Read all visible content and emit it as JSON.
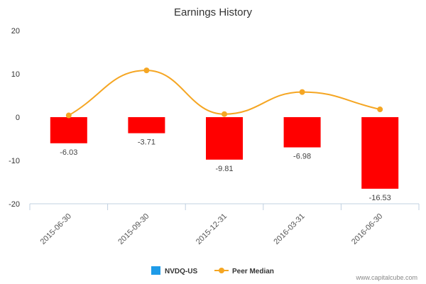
{
  "chart_data": {
    "type": "bar",
    "title": "Earnings History",
    "xlabel": "",
    "ylabel": "",
    "ylim": [
      -20,
      20
    ],
    "yticks": [
      "20",
      "10",
      "0",
      "-10",
      "-20"
    ],
    "ytick_values": [
      20,
      10,
      0,
      -10,
      -20
    ],
    "categories": [
      "2015-06-30",
      "2015-09-30",
      "2015-12-31",
      "2016-03-31",
      "2016-06-30"
    ],
    "series": [
      {
        "name": "NVDQ-US",
        "kind": "bar",
        "legend_color": "#1e9be8",
        "bar_color": "#ff0000",
        "values": [
          -6.03,
          -3.71,
          -9.81,
          -6.98,
          -16.53
        ],
        "labels": [
          "-6.03",
          "-3.71",
          "-9.81",
          "-6.98",
          "-16.53"
        ]
      },
      {
        "name": "Peer Median",
        "kind": "line",
        "color": "#f5a623",
        "values": [
          0.4,
          10.8,
          0.7,
          5.8,
          1.8
        ]
      }
    ],
    "legend_position": "bottom-center",
    "grid": false
  },
  "credit": "www.capitalcube.com"
}
